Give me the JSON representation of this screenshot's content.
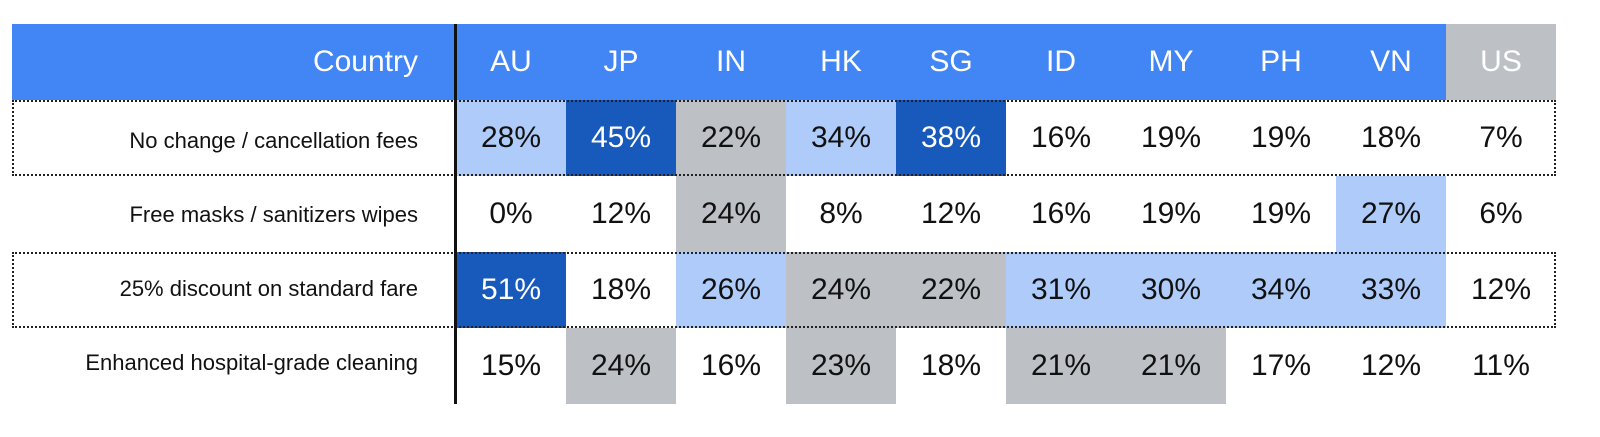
{
  "colors": {
    "header_bg": "#4285f4",
    "header_bg_us": "#bdc1c6",
    "light_blue": "#aecbfa",
    "dark_blue": "#185abc",
    "gray": "#bdc1c6",
    "white": "#ffffff"
  },
  "chart_data": {
    "type": "table",
    "corner_label": "Country",
    "columns": [
      "AU",
      "JP",
      "IN",
      "HK",
      "SG",
      "ID",
      "MY",
      "PH",
      "VN",
      "US"
    ],
    "rows": [
      {
        "label": "No change / cancellation fees",
        "values": [
          "28%",
          "45%",
          "22%",
          "34%",
          "38%",
          "16%",
          "19%",
          "19%",
          "18%",
          "7%"
        ],
        "highlight": [
          "light",
          "dark",
          "gray",
          "light",
          "dark",
          "none",
          "none",
          "none",
          "none",
          "none"
        ],
        "outlined": true
      },
      {
        "label": "Free masks / sanitizers wipes",
        "values": [
          "0%",
          "12%",
          "24%",
          "8%",
          "12%",
          "16%",
          "19%",
          "19%",
          "27%",
          "6%"
        ],
        "highlight": [
          "none",
          "none",
          "gray",
          "none",
          "none",
          "none",
          "none",
          "none",
          "light",
          "none"
        ],
        "outlined": false
      },
      {
        "label": "25% discount on standard fare",
        "values": [
          "51%",
          "18%",
          "26%",
          "24%",
          "22%",
          "31%",
          "30%",
          "34%",
          "33%",
          "12%"
        ],
        "highlight": [
          "dark",
          "none",
          "light",
          "gray",
          "gray",
          "light",
          "light",
          "light",
          "light",
          "none"
        ],
        "outlined": true
      },
      {
        "label": "Enhanced hospital-grade cleaning",
        "values": [
          "15%",
          "24%",
          "16%",
          "23%",
          "18%",
          "21%",
          "21%",
          "17%",
          "12%",
          "11%"
        ],
        "highlight": [
          "none",
          "gray",
          "none",
          "gray",
          "none",
          "gray",
          "gray",
          "none",
          "none",
          "none"
        ],
        "outlined": false
      }
    ]
  }
}
